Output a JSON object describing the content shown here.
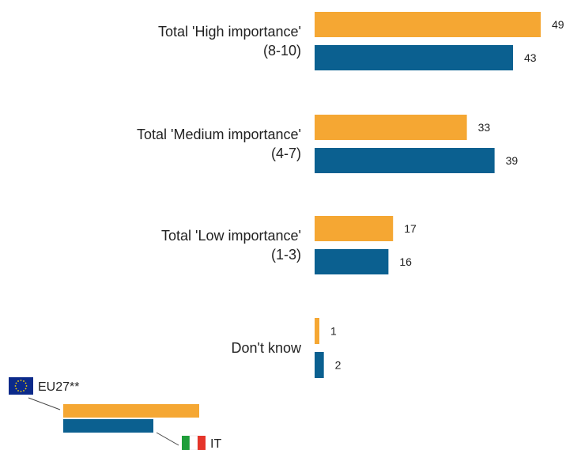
{
  "chart_data": {
    "type": "bar",
    "orientation": "horizontal",
    "categories": [
      [
        "Total 'High importance'",
        "(8-10)"
      ],
      [
        "Total 'Medium importance'",
        "(4-7)"
      ],
      [
        "Total 'Low importance'",
        "(1-3)"
      ],
      [
        "Don't know"
      ]
    ],
    "series": [
      {
        "name": "EU27**",
        "color": "#F5A733",
        "values": [
          49,
          33,
          17,
          1
        ]
      },
      {
        "name": "IT",
        "color": "#0B6090",
        "values": [
          43,
          39,
          16,
          2
        ]
      }
    ],
    "xlim": [
      0,
      49
    ],
    "title": "",
    "xlabel": "",
    "ylabel": "",
    "grid": false,
    "legend": {
      "placement": "bottom-left",
      "entries": [
        {
          "label": "EU27**",
          "icon": "eu-flag-icon"
        },
        {
          "label": "IT",
          "icon": "italy-flag-icon"
        }
      ]
    }
  }
}
